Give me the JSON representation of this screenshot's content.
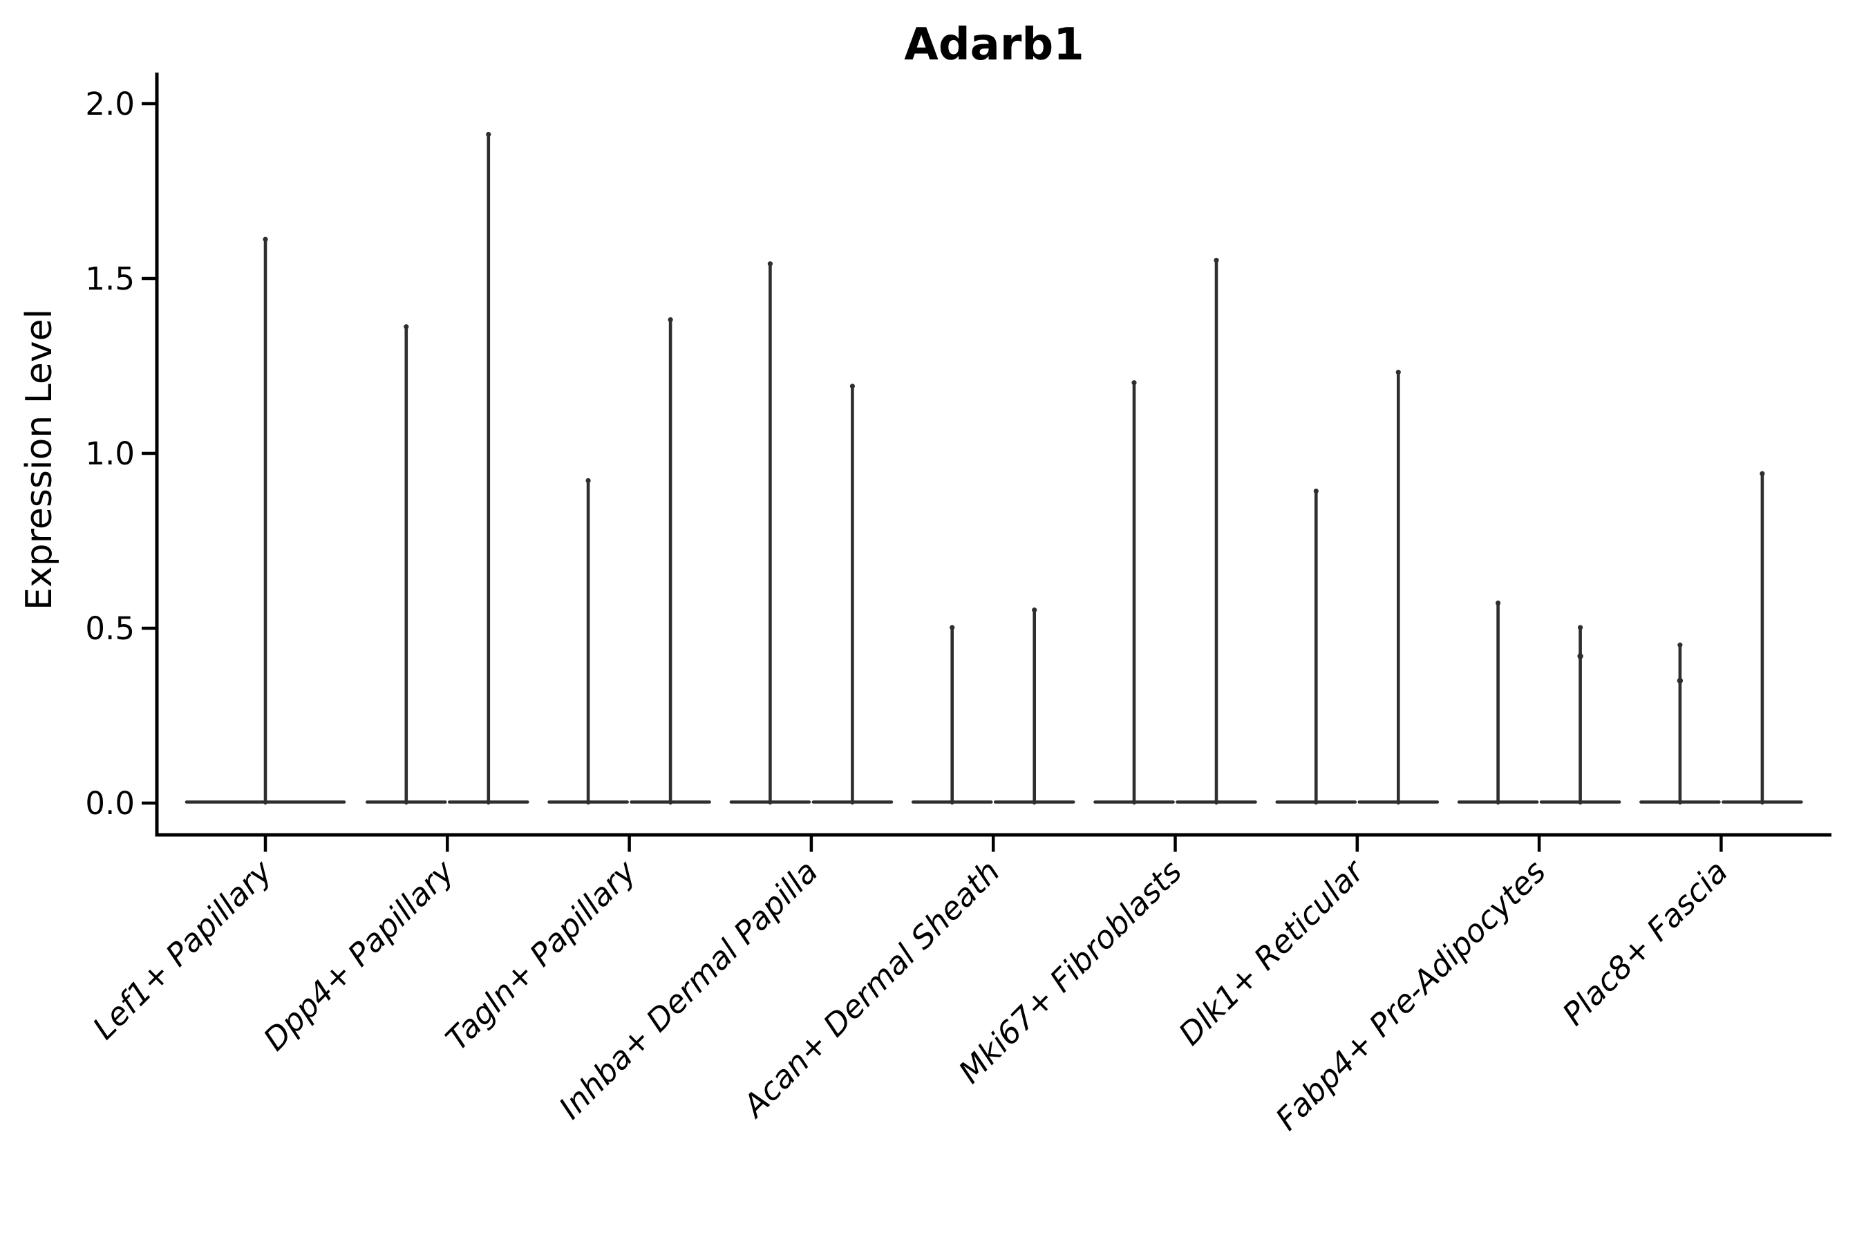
{
  "chart_data": {
    "type": "violin",
    "title": "Adarb1",
    "ylabel": "Expression Level",
    "xlabel": "",
    "ytick_labels": [
      "0.0",
      "0.5",
      "1.0",
      "1.5",
      "2.0"
    ],
    "ytick_values": [
      0.0,
      0.5,
      1.0,
      1.5,
      2.0
    ],
    "ylim": [
      -0.09,
      2.09
    ],
    "legend": "none",
    "grid": false,
    "categories": [
      "Lef1+ Papillary",
      "Dpp4+ Papillary",
      "Tagln+ Papillary",
      "Inhba+ Dermal Papilla",
      "Acan+ Dermal Sheath",
      "Mki67+ Fibroblasts",
      "Dlk1+ Reticular",
      "Fabp4+ Pre-Adipocytes",
      "Plac8+ Fascia"
    ],
    "groups": [
      {
        "category": "Lef1+ Papillary",
        "violins": [
          {
            "max": 1.62
          }
        ]
      },
      {
        "category": "Dpp4+ Papillary",
        "violins": [
          {
            "max": 1.37
          },
          {
            "max": 1.92
          }
        ]
      },
      {
        "category": "Tagln+ Papillary",
        "violins": [
          {
            "max": 0.93
          },
          {
            "max": 1.39
          }
        ]
      },
      {
        "category": "Inhba+ Dermal Papilla",
        "violins": [
          {
            "max": 1.55
          },
          {
            "max": 1.2
          }
        ]
      },
      {
        "category": "Acan+ Dermal Sheath",
        "violins": [
          {
            "max": 0.51
          },
          {
            "max": 0.56
          }
        ]
      },
      {
        "category": "Mki67+ Fibroblasts",
        "violins": [
          {
            "max": 1.21
          },
          {
            "max": 1.56
          }
        ]
      },
      {
        "category": "Dlk1+ Reticular",
        "violins": [
          {
            "max": 0.9
          },
          {
            "max": 1.24
          }
        ]
      },
      {
        "category": "Fabp4+ Pre-Adipocytes",
        "violins": [
          {
            "max": 0.58
          },
          {
            "max": 0.51,
            "knot": 0.42
          }
        ]
      },
      {
        "category": "Plac8+ Fascia",
        "violins": [
          {
            "max": 0.46,
            "knot": 0.35
          },
          {
            "max": 0.95
          }
        ]
      }
    ],
    "colors": {
      "violin": "#2e2e2e",
      "axis": "#000000",
      "text": "#000000",
      "background": "#ffffff"
    }
  }
}
